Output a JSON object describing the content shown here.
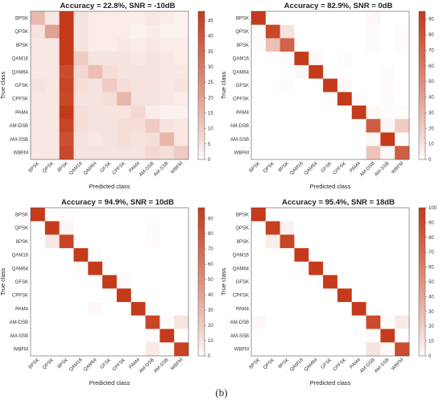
{
  "caption": "(b)",
  "classes": [
    "BPSK",
    "QPSK",
    "8PSK",
    "QAM16",
    "QAM64",
    "GFSK",
    "CPFSK",
    "PAM4",
    "AM-DSB",
    "AM-SSB",
    "WBFM"
  ],
  "colormap": {
    "low": "#ffffff",
    "high": "#c43a1a"
  },
  "chart_data": [
    {
      "type": "heatmap",
      "title": "Accuracy = 22.8%, SNR = -10dB",
      "xlabel": "Predicted class",
      "ylabel": "True class",
      "clim": [
        0,
        48
      ],
      "colorbar_ticks": [
        0,
        5,
        10,
        15,
        20,
        25,
        30,
        35,
        40,
        45
      ],
      "matrix": [
        [
          14,
          4,
          56,
          5,
          3,
          3,
          3,
          3,
          4,
          3,
          2
        ],
        [
          5,
          20,
          52,
          5,
          3,
          3,
          3,
          2,
          3,
          2,
          2
        ],
        [
          4,
          4,
          59,
          5,
          3,
          3,
          4,
          3,
          4,
          3,
          3
        ],
        [
          4,
          4,
          48,
          10,
          5,
          5,
          5,
          4,
          5,
          4,
          3
        ],
        [
          4,
          4,
          43,
          7,
          13,
          6,
          5,
          5,
          5,
          4,
          4
        ],
        [
          5,
          4,
          45,
          6,
          5,
          10,
          6,
          5,
          5,
          4,
          5
        ],
        [
          4,
          4,
          44,
          5,
          5,
          6,
          15,
          5,
          5,
          4,
          3
        ],
        [
          4,
          4,
          58,
          6,
          5,
          5,
          5,
          7,
          3,
          2,
          2
        ],
        [
          4,
          4,
          45,
          6,
          5,
          5,
          6,
          6,
          10,
          5,
          4
        ],
        [
          4,
          4,
          42,
          5,
          4,
          5,
          6,
          5,
          6,
          15,
          4
        ],
        [
          4,
          4,
          44,
          5,
          5,
          5,
          5,
          5,
          7,
          6,
          10
        ]
      ]
    },
    {
      "type": "heatmap",
      "title": "Accuracy = 82.9%, SNR = 0dB",
      "xlabel": "Predicted class",
      "ylabel": "True class",
      "clim": [
        0,
        95
      ],
      "colorbar_ticks": [
        0,
        10,
        20,
        30,
        40,
        50,
        60,
        70,
        80,
        90
      ],
      "matrix": [
        [
          97,
          1,
          0,
          0,
          0,
          0,
          0,
          0,
          2,
          0,
          0
        ],
        [
          1,
          87,
          10,
          0,
          0,
          0,
          0,
          0,
          1,
          0,
          1
        ],
        [
          1,
          25,
          72,
          0,
          0,
          0,
          0,
          0,
          1,
          0,
          1
        ],
        [
          0,
          0,
          1,
          96,
          2,
          0,
          1,
          0,
          0,
          0,
          0
        ],
        [
          0,
          0,
          0,
          2,
          97,
          0,
          0,
          0,
          0,
          1,
          0
        ],
        [
          0,
          0,
          1,
          0,
          0,
          97,
          1,
          0,
          0,
          1,
          0
        ],
        [
          0,
          0,
          0,
          0,
          0,
          1,
          97,
          1,
          0,
          1,
          0
        ],
        [
          0,
          0,
          0,
          0,
          0,
          0,
          0,
          96,
          2,
          1,
          1
        ],
        [
          0,
          0,
          0,
          0,
          0,
          0,
          0,
          1,
          76,
          3,
          20
        ],
        [
          0,
          0,
          0,
          0,
          0,
          0,
          0,
          0,
          2,
          97,
          1
        ],
        [
          0,
          0,
          0,
          0,
          0,
          0,
          0,
          0,
          23,
          2,
          75
        ]
      ]
    },
    {
      "type": "heatmap",
      "title": "Accuracy = 94.9%, SNR = 10dB",
      "xlabel": "Predicted class",
      "ylabel": "True class",
      "clim": [
        0,
        97
      ],
      "colorbar_ticks": [
        0,
        10,
        20,
        30,
        40,
        50,
        60,
        70,
        80,
        90
      ],
      "matrix": [
        [
          99,
          0,
          1,
          0,
          0,
          0,
          0,
          0,
          0,
          0,
          0
        ],
        [
          0,
          96,
          3,
          0,
          0,
          0,
          0,
          0,
          1,
          0,
          0
        ],
        [
          0,
          8,
          91,
          0,
          0,
          0,
          0,
          0,
          1,
          0,
          0
        ],
        [
          0,
          0,
          0,
          99,
          1,
          0,
          0,
          0,
          0,
          0,
          0
        ],
        [
          0,
          0,
          0,
          1,
          99,
          0,
          0,
          0,
          0,
          0,
          0
        ],
        [
          0,
          0,
          0,
          0,
          0,
          99,
          1,
          0,
          0,
          0,
          0
        ],
        [
          0,
          0,
          0,
          0,
          0,
          0,
          100,
          0,
          0,
          0,
          0
        ],
        [
          0,
          0,
          0,
          0,
          2,
          0,
          0,
          98,
          0,
          0,
          0
        ],
        [
          0,
          0,
          0,
          0,
          0,
          0,
          0,
          0,
          90,
          1,
          9
        ],
        [
          0,
          0,
          0,
          0,
          0,
          0,
          0,
          0,
          1,
          99,
          0
        ],
        [
          0,
          0,
          0,
          0,
          0,
          0,
          0,
          0,
          7,
          1,
          92
        ]
      ]
    },
    {
      "type": "heatmap",
      "title": "Accuracy = 95.4%, SNR = 18dB",
      "xlabel": "Predicted class",
      "ylabel": "True class",
      "clim": [
        0,
        100
      ],
      "colorbar_ticks": [
        0,
        10,
        20,
        30,
        40,
        50,
        60,
        70,
        80,
        90,
        100
      ],
      "matrix": [
        [
          100,
          0,
          0,
          0,
          0,
          0,
          0,
          0,
          0,
          0,
          0
        ],
        [
          0,
          96,
          4,
          0,
          0,
          0,
          0,
          0,
          0,
          0,
          0
        ],
        [
          0,
          6,
          94,
          0,
          0,
          0,
          0,
          0,
          0,
          0,
          0
        ],
        [
          0,
          0,
          0,
          100,
          0,
          0,
          0,
          0,
          0,
          0,
          0
        ],
        [
          0,
          0,
          0,
          1,
          99,
          0,
          0,
          0,
          0,
          0,
          0
        ],
        [
          0,
          0,
          0,
          0,
          0,
          100,
          0,
          0,
          0,
          0,
          0
        ],
        [
          0,
          0,
          0,
          0,
          0,
          0,
          100,
          0,
          0,
          0,
          0
        ],
        [
          0,
          0,
          0,
          0,
          0,
          0,
          0,
          100,
          0,
          0,
          0
        ],
        [
          2,
          0,
          0,
          0,
          0,
          0,
          0,
          0,
          90,
          1,
          7
        ],
        [
          0,
          0,
          0,
          0,
          0,
          0,
          0,
          0,
          1,
          99,
          0
        ],
        [
          0,
          0,
          0,
          0,
          0,
          0,
          0,
          0,
          10,
          1,
          89
        ]
      ]
    }
  ]
}
